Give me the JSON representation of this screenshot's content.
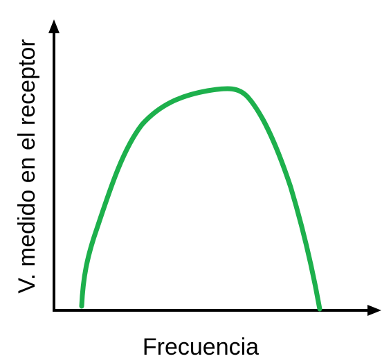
{
  "axes": {
    "x_label": "Frecuencia",
    "y_label": "V. medido en el receptor"
  }
}
